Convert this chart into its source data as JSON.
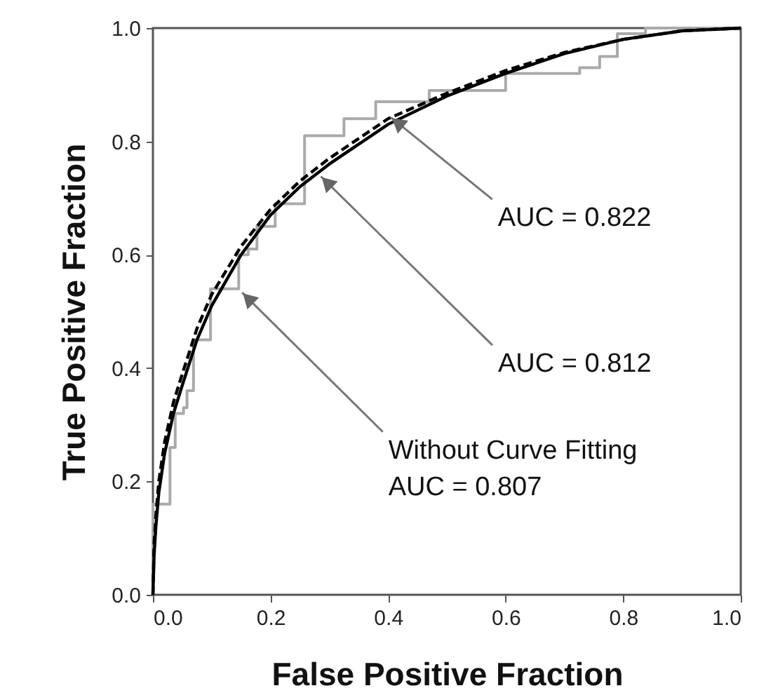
{
  "chart_data": {
    "type": "line",
    "xlabel": "False Positive Fraction",
    "ylabel": "True Positive Fraction",
    "xlim": [
      0,
      1
    ],
    "ylim": [
      0,
      1
    ],
    "xticks": [
      {
        "value": 0,
        "label": "0.0"
      },
      {
        "value": 0.2,
        "label": "0.2"
      },
      {
        "value": 0.4,
        "label": "0.4"
      },
      {
        "value": 0.6,
        "label": "0.6"
      },
      {
        "value": 0.8,
        "label": "0.8"
      },
      {
        "value": 1,
        "label": "1.0"
      }
    ],
    "yticks": [
      {
        "value": 0,
        "label": "0.0"
      },
      {
        "value": 0.2,
        "label": "0.2"
      },
      {
        "value": 0.4,
        "label": "0.4"
      },
      {
        "value": 0.6,
        "label": "0.6"
      },
      {
        "value": 0.8,
        "label": "0.8"
      },
      {
        "value": 1,
        "label": "1.0"
      }
    ],
    "grid": false,
    "series": [
      {
        "type": "step",
        "color": "#aaaaaa",
        "line_style": "solid",
        "x": [
          0,
          0,
          0.029,
          0.038,
          0.052,
          0.058,
          0.069,
          0.098,
          0.146,
          0.162,
          0.177,
          0.208,
          0.258,
          0.325,
          0.379,
          0.47,
          0.6,
          0.726,
          0.76,
          0.79,
          0.838,
          1
        ],
        "values": [
          0,
          0.16,
          0.26,
          0.32,
          0.33,
          0.36,
          0.45,
          0.54,
          0.6,
          0.61,
          0.65,
          0.69,
          0.81,
          0.84,
          0.87,
          0.89,
          0.92,
          0.93,
          0.95,
          0.99,
          1,
          1
        ]
      },
      {
        "type": "line",
        "color": "#000000",
        "line_style": "solid",
        "x": [
          0,
          0.002,
          0.005,
          0.01,
          0.02,
          0.035,
          0.05,
          0.075,
          0.1,
          0.15,
          0.2,
          0.25,
          0.3,
          0.4,
          0.5,
          0.6,
          0.7,
          0.8,
          0.9,
          1
        ],
        "values": [
          0,
          0.07,
          0.12,
          0.18,
          0.25,
          0.32,
          0.37,
          0.45,
          0.51,
          0.6,
          0.67,
          0.72,
          0.76,
          0.83,
          0.88,
          0.92,
          0.955,
          0.98,
          0.995,
          1
        ]
      },
      {
        "type": "line",
        "color": "#000000",
        "line_style": "dashed",
        "x": [
          0,
          0.002,
          0.005,
          0.01,
          0.02,
          0.035,
          0.05,
          0.075,
          0.1,
          0.15,
          0.2,
          0.25,
          0.3,
          0.4,
          0.5,
          0.6,
          0.7,
          0.8,
          0.9,
          1
        ],
        "values": [
          0,
          0.09,
          0.14,
          0.2,
          0.27,
          0.34,
          0.39,
          0.47,
          0.53,
          0.615,
          0.68,
          0.73,
          0.77,
          0.84,
          0.885,
          0.925,
          0.957,
          0.98,
          0.995,
          1
        ]
      }
    ],
    "annotations": [
      {
        "text": "AUC = 0.822",
        "x": 0.403,
        "y": 0.844
      },
      {
        "text": "AUC = 0.812",
        "x": 0.284,
        "y": 0.74
      },
      {
        "text": "Without Curve Fitting\nAUC = 0.807",
        "x": 0.15,
        "y": 0.535
      }
    ]
  }
}
